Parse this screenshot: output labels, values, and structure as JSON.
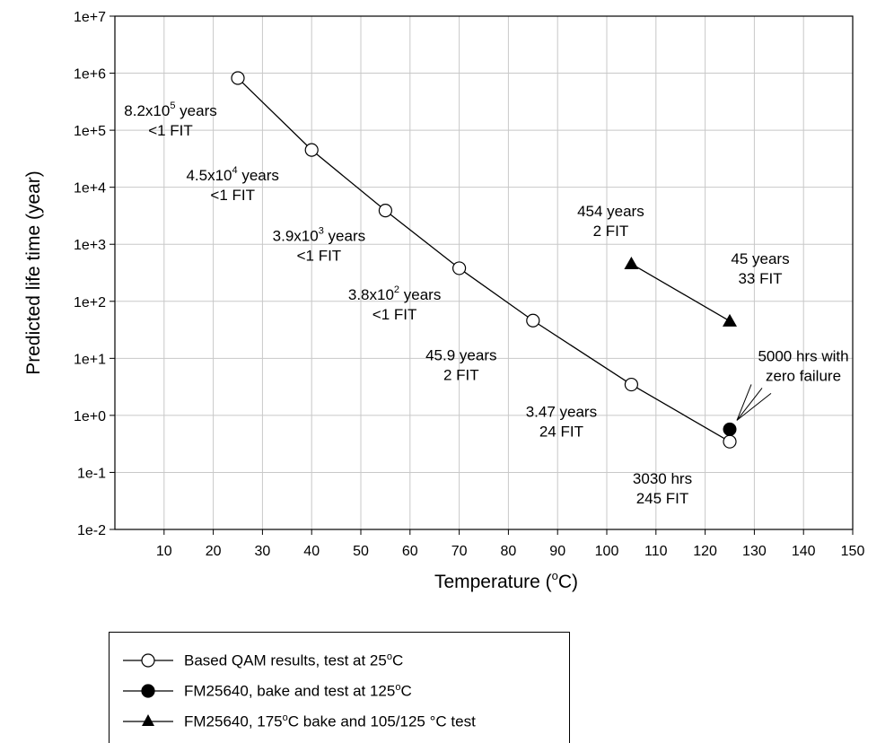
{
  "chart_data": {
    "type": "line",
    "xlabel": "Temperature (°C)",
    "ylabel": "Predicted life time (year)",
    "xlim": [
      0,
      150
    ],
    "ylim_log10": [
      -2,
      7
    ],
    "y_scale": "log",
    "grid": true,
    "x_ticks": [
      "10",
      "20",
      "30",
      "40",
      "50",
      "60",
      "70",
      "80",
      "90",
      "100",
      "110",
      "120",
      "130",
      "140",
      "150"
    ],
    "x_tick_values": [
      10,
      20,
      30,
      40,
      50,
      60,
      70,
      80,
      90,
      100,
      110,
      120,
      130,
      140,
      150
    ],
    "y_ticks": [
      "1e-2",
      "1e-1",
      "1e+0",
      "1e+1",
      "1e+2",
      "1e+3",
      "1e+4",
      "1e+5",
      "1e+6",
      "1e+7"
    ],
    "y_tick_values": [
      0.01,
      0.1,
      1,
      10,
      100,
      1000,
      10000,
      100000,
      1000000,
      10000000
    ],
    "series": [
      {
        "name": "Based QAM results, test at 25°C",
        "marker": "open-circle",
        "x": [
          25,
          40,
          55,
          70,
          85,
          105,
          125
        ],
        "y": [
          820000,
          45000,
          3900,
          380,
          45.9,
          3.47,
          0.346
        ]
      },
      {
        "name": "FM25640, bake and test at 125°C",
        "marker": "filled-circle",
        "x": [
          125
        ],
        "y": [
          0.57
        ]
      },
      {
        "name": "FM25640, 175°C bake and 105/125 °C test",
        "marker": "filled-triangle",
        "x": [
          105,
          125
        ],
        "y": [
          454,
          45
        ]
      }
    ],
    "annotations": [
      {
        "x": 25,
        "y": 820000,
        "line1": "8.2x10",
        "sup": "5",
        "line1_tail": " years",
        "line2": "<1 FIT"
      },
      {
        "x": 40,
        "y": 45000,
        "line1": "4.5x10",
        "sup": "4",
        "line1_tail": " years",
        "line2": "<1 FIT"
      },
      {
        "x": 55,
        "y": 3900,
        "line1": "3.9x10",
        "sup": "3",
        "line1_tail": " years",
        "line2": "<1 FIT"
      },
      {
        "x": 70,
        "y": 380,
        "line1": "3.8x10",
        "sup": "2",
        "line1_tail": " years",
        "line2": "<1 FIT"
      },
      {
        "x": 85,
        "y": 45.9,
        "line1": "45.9 years",
        "sup": "",
        "line1_tail": "",
        "line2": "2 FIT"
      },
      {
        "x": 105,
        "y": 3.47,
        "line1": "3.47 years",
        "sup": "",
        "line1_tail": "",
        "line2": "24 FIT"
      },
      {
        "x": 125,
        "y": 0.346,
        "line1": "3030 hrs",
        "sup": "",
        "line1_tail": "",
        "line2": "245 FIT"
      },
      {
        "x": 105,
        "y": 454,
        "line1": "454 years",
        "sup": "",
        "line1_tail": "",
        "line2": "2 FIT"
      },
      {
        "x": 125,
        "y": 45,
        "line1": "45 years",
        "sup": "",
        "line1_tail": "",
        "line2": "33 FIT"
      },
      {
        "x": 125,
        "y": 0.57,
        "line1": "5000 hrs with",
        "sup": "",
        "line1_tail": "",
        "line2": "zero failure"
      }
    ]
  },
  "legend": {
    "items": [
      {
        "pre": "Based QAM results, test at 25",
        "sup": "o",
        "post": "C"
      },
      {
        "pre": "FM25640, bake and test at 125",
        "sup": "o",
        "post": "C"
      },
      {
        "pre": "FM25640, 175",
        "sup": "o",
        "post": "C bake and 105/125 °C test"
      }
    ]
  }
}
